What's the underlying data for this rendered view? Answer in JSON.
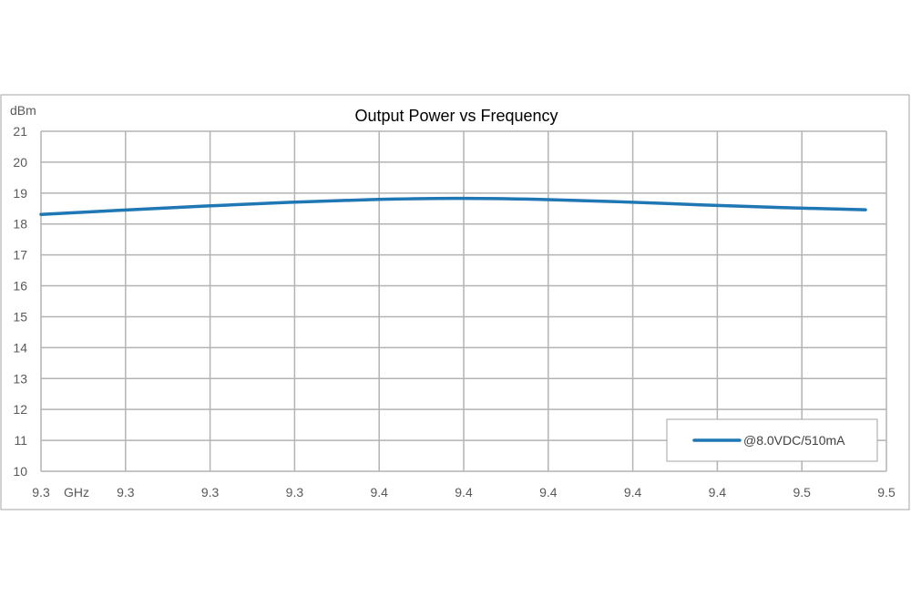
{
  "chart_data": {
    "type": "line",
    "title": "Output Power vs Frequency",
    "ylabel": "dBm",
    "xlabel": "GHz",
    "ylim": [
      10,
      21
    ],
    "yticks": [
      "10",
      "11",
      "12",
      "13",
      "14",
      "15",
      "16",
      "17",
      "18",
      "19",
      "20",
      "21"
    ],
    "xticks": [
      "9.3",
      "9.3",
      "9.3",
      "9.3",
      "9.4",
      "9.4",
      "9.4",
      "9.4",
      "9.4",
      "9.5",
      "9.5"
    ],
    "grid": true,
    "legend_position": "bottom-right",
    "series": [
      {
        "name": "@8.0VDC/510mA",
        "color": "#1f77b4",
        "values": [
          18.31,
          18.45,
          18.58,
          18.7,
          18.79,
          18.83,
          18.8,
          18.72,
          18.62,
          18.53,
          18.46
        ]
      }
    ]
  }
}
